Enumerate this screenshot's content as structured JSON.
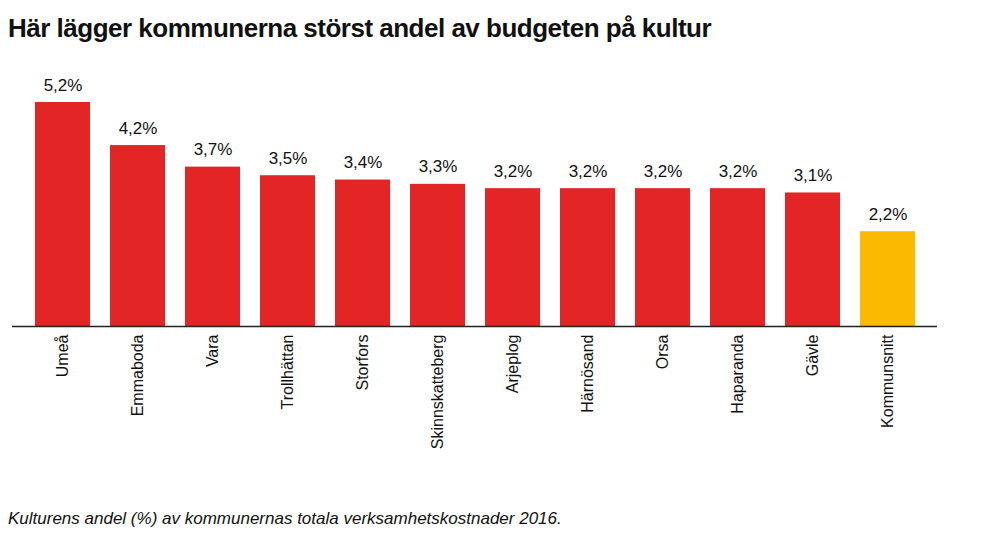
{
  "chart_data": {
    "type": "bar",
    "title": "Här lägger kommunerna störst andel av budgeten på kultur",
    "caption": "Kulturens andel (%) av kommunernas totala verksamhetskostnader 2016.",
    "categories": [
      "Umeå",
      "Emmaboda",
      "Vara",
      "Trollhättan",
      "Storfors",
      "Skinnskatteberg",
      "Arjeplog",
      "Härnösand",
      "Orsa",
      "Haparanda",
      "Gävle",
      "Kommunsnitt"
    ],
    "values": [
      5.2,
      4.2,
      3.7,
      3.5,
      3.4,
      3.3,
      3.2,
      3.2,
      3.2,
      3.2,
      3.1,
      2.2
    ],
    "value_labels": [
      "5,2%",
      "4,2%",
      "3,7%",
      "3,5%",
      "3,4%",
      "3,3%",
      "3,2%",
      "3,2%",
      "3,2%",
      "3,2%",
      "3,1%",
      "2,2%"
    ],
    "colors": [
      "#e32526",
      "#e32526",
      "#e32526",
      "#e32526",
      "#e32526",
      "#e32526",
      "#e32526",
      "#e32526",
      "#e32526",
      "#e32526",
      "#e32526",
      "#fbb900"
    ],
    "ylim": [
      0,
      5.2
    ],
    "data_labels": true,
    "tick_labels": "x"
  }
}
